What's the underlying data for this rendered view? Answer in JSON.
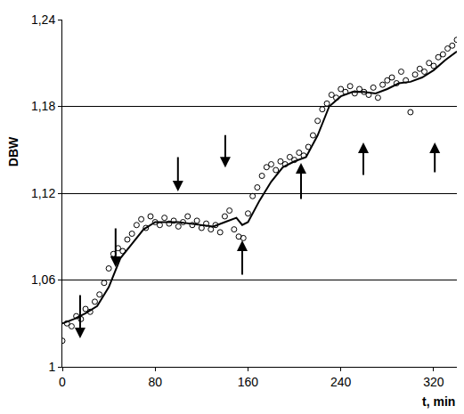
{
  "chart_data": {
    "type": "scatter",
    "x_label": "t, min",
    "y_label": "DBW",
    "xlim": [
      0,
      340
    ],
    "xticks": [
      0,
      80,
      160,
      240,
      320
    ],
    "ylim": [
      1,
      1.24
    ],
    "yticks": [
      1,
      {
        "value": 1.06,
        "label": "1,06"
      },
      {
        "value": 1.12,
        "label": "1,12"
      },
      {
        "value": 1.18,
        "label": "1,18"
      },
      {
        "value": 1.24,
        "label": "1,24"
      }
    ],
    "grid": true,
    "series": [
      {
        "type": "scatter",
        "marker": "circle-open",
        "color": "#000000",
        "x": [
          0,
          4,
          8,
          12,
          16,
          20,
          24,
          28,
          32,
          36,
          40,
          44,
          48,
          52,
          56,
          60,
          64,
          68,
          72,
          76,
          80,
          84,
          88,
          92,
          96,
          100,
          104,
          108,
          112,
          116,
          120,
          124,
          128,
          132,
          136,
          140,
          144,
          148,
          152,
          156,
          160,
          164,
          168,
          172,
          176,
          180,
          184,
          188,
          192,
          196,
          200,
          204,
          208,
          212,
          216,
          220,
          224,
          228,
          232,
          236,
          240,
          244,
          248,
          252,
          256,
          260,
          264,
          268,
          272,
          276,
          280,
          284,
          288,
          292,
          296,
          300,
          304,
          308,
          312,
          316,
          320,
          324,
          328,
          332,
          336,
          340
        ],
        "values": [
          1.018,
          1.03,
          1.028,
          1.035,
          1.033,
          1.04,
          1.038,
          1.045,
          1.05,
          1.058,
          1.068,
          1.078,
          1.082,
          1.08,
          1.088,
          1.092,
          1.098,
          1.102,
          1.096,
          1.104,
          1.1,
          1.098,
          1.103,
          1.099,
          1.101,
          1.097,
          1.1,
          1.104,
          1.098,
          1.101,
          1.096,
          1.099,
          1.095,
          1.098,
          1.093,
          1.104,
          1.108,
          1.095,
          1.09,
          1.089,
          1.106,
          1.118,
          1.124,
          1.132,
          1.138,
          1.14,
          1.136,
          1.142,
          1.14,
          1.145,
          1.143,
          1.148,
          1.146,
          1.152,
          1.16,
          1.17,
          1.178,
          1.182,
          1.188,
          1.186,
          1.192,
          1.19,
          1.194,
          1.189,
          1.192,
          1.19,
          1.188,
          1.193,
          1.186,
          1.195,
          1.198,
          1.2,
          1.196,
          1.204,
          1.198,
          1.176,
          1.202,
          1.206,
          1.204,
          1.21,
          1.208,
          1.214,
          1.216,
          1.22,
          1.222,
          1.226
        ]
      },
      {
        "type": "line",
        "line_style": "solid",
        "color": "#000000",
        "x": [
          0,
          10,
          20,
          30,
          40,
          50,
          60,
          70,
          80,
          90,
          100,
          110,
          120,
          130,
          140,
          150,
          155,
          160,
          170,
          180,
          190,
          200,
          210,
          220,
          230,
          240,
          250,
          260,
          270,
          280,
          290,
          300,
          310,
          320,
          330,
          340
        ],
        "values": [
          1.03,
          1.033,
          1.037,
          1.042,
          1.055,
          1.075,
          1.085,
          1.095,
          1.1,
          1.1,
          1.1,
          1.099,
          1.098,
          1.097,
          1.1,
          1.103,
          1.098,
          1.1,
          1.115,
          1.128,
          1.138,
          1.142,
          1.145,
          1.16,
          1.18,
          1.187,
          1.19,
          1.19,
          1.189,
          1.192,
          1.196,
          1.197,
          1.2,
          1.205,
          1.212,
          1.218
        ]
      }
    ]
  }
}
